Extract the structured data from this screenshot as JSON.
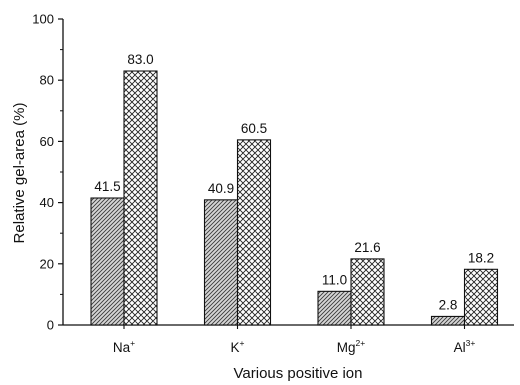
{
  "chart_data": {
    "type": "bar",
    "categories": [
      {
        "base": "Na",
        "sup": "+"
      },
      {
        "base": "K",
        "sup": "+"
      },
      {
        "base": "Mg",
        "sup": "2+"
      },
      {
        "base": "Al",
        "sup": "3+"
      }
    ],
    "series": [
      {
        "pattern": "diagonal-hatch",
        "values": [
          41.5,
          40.9,
          11.0,
          2.8
        ],
        "labels": [
          "41.5",
          "40.9",
          "11.0",
          "2.8"
        ]
      },
      {
        "pattern": "cross-hatch",
        "values": [
          83.0,
          60.5,
          21.6,
          18.2
        ],
        "labels": [
          "83.0",
          "60.5",
          "21.6",
          "18.2"
        ]
      }
    ],
    "xlabel": "Various positive ion",
    "ylabel": "Relative gel-area (%)",
    "ylim": [
      0,
      100
    ],
    "yticks": [
      "0",
      "20",
      "40",
      "60",
      "80",
      "100"
    ],
    "grid": false,
    "legend": false
  }
}
